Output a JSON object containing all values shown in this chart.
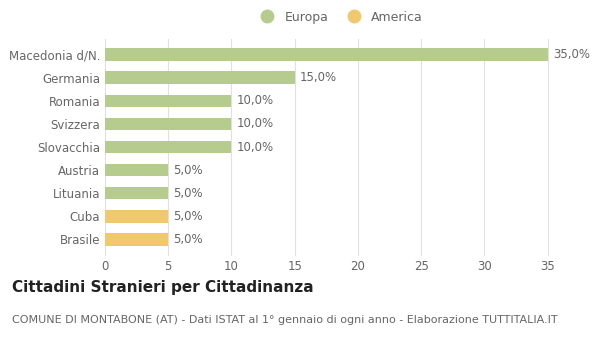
{
  "categories": [
    "Brasile",
    "Cuba",
    "Lituania",
    "Austria",
    "Slovacchia",
    "Svizzera",
    "Romania",
    "Germania",
    "Macedonia d/N."
  ],
  "values": [
    5.0,
    5.0,
    5.0,
    5.0,
    10.0,
    10.0,
    10.0,
    15.0,
    35.0
  ],
  "colors": [
    "#f0c96e",
    "#f0c96e",
    "#b5cc8e",
    "#b5cc8e",
    "#b5cc8e",
    "#b5cc8e",
    "#b5cc8e",
    "#b5cc8e",
    "#b5cc8e"
  ],
  "europa_color": "#b5cc8e",
  "america_color": "#f0c96e",
  "title": "Cittadini Stranieri per Cittadinanza",
  "subtitle": "COMUNE DI MONTABONE (AT) - Dati ISTAT al 1° gennaio di ogni anno - Elaborazione TUTTITALIA.IT",
  "xlim": [
    0,
    37
  ],
  "xticks": [
    0,
    5,
    10,
    15,
    20,
    25,
    30,
    35
  ],
  "background_color": "#ffffff",
  "grid_color": "#e0e0e0",
  "bar_height": 0.55,
  "label_fontsize": 8.5,
  "title_fontsize": 11,
  "subtitle_fontsize": 8,
  "legend_fontsize": 9,
  "ytick_fontsize": 8.5,
  "xtick_fontsize": 8.5,
  "text_color": "#666666"
}
